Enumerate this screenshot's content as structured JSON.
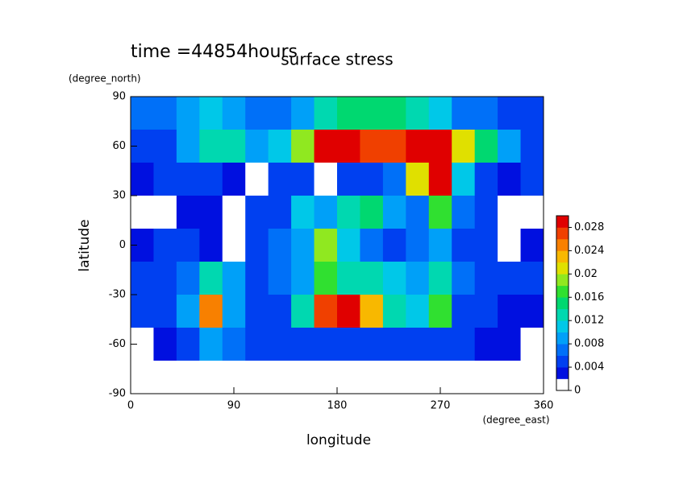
{
  "chart_data": {
    "type": "contour",
    "title": "surface stress",
    "subtitle": "time =44854hours",
    "x_label": "longitude",
    "x_units": "(degree_east)",
    "y_label": "latitude",
    "y_units": "(degree_north)",
    "x": [
      10,
      30,
      50,
      70,
      90,
      110,
      130,
      150,
      170,
      190,
      210,
      230,
      250,
      270,
      290,
      310,
      330,
      350
    ],
    "y": [
      80,
      60,
      40,
      20,
      0,
      -20,
      -40,
      -60,
      -80
    ],
    "z": [
      [
        0.006,
        0.006,
        0.008,
        0.01,
        0.008,
        0.006,
        0.006,
        0.008,
        0.012,
        0.014,
        0.014,
        0.014,
        0.012,
        0.01,
        0.006,
        0.006,
        0.005,
        0.004
      ],
      [
        0.004,
        0.005,
        0.008,
        0.012,
        0.012,
        0.008,
        0.01,
        0.018,
        0.03,
        0.03,
        0.026,
        0.026,
        0.03,
        0.03,
        0.02,
        0.014,
        0.008,
        0.004
      ],
      [
        0.002,
        0.004,
        0.004,
        0.004,
        0.002,
        0,
        0.004,
        0.004,
        0,
        0.004,
        0.004,
        0.006,
        0.02,
        0.03,
        0.01,
        0.004,
        0.002,
        0.004
      ],
      [
        0,
        0,
        0.002,
        0.002,
        0,
        0.004,
        0.004,
        0.01,
        0.008,
        0.012,
        0.014,
        0.008,
        0.006,
        0.016,
        0.006,
        0.004,
        0,
        0
      ],
      [
        0.002,
        0.004,
        0.004,
        0.002,
        0,
        0.004,
        0.006,
        0.008,
        0.018,
        0.01,
        0.006,
        0.004,
        0.006,
        0.008,
        0.004,
        0.004,
        0,
        0.002
      ],
      [
        0.004,
        0.004,
        0.006,
        0.012,
        0.008,
        0.004,
        0.006,
        0.008,
        0.016,
        0.012,
        0.012,
        0.01,
        0.008,
        0.012,
        0.006,
        0.004,
        0.004,
        0.004
      ],
      [
        0.004,
        0.004,
        0.008,
        0.024,
        0.008,
        0.004,
        0.004,
        0.012,
        0.026,
        0.028,
        0.022,
        0.012,
        0.01,
        0.016,
        0.004,
        0.004,
        0.002,
        0.002
      ],
      [
        0,
        0.002,
        0.004,
        0.008,
        0.006,
        0.004,
        0.004,
        0.004,
        0.004,
        0.004,
        0.004,
        0.004,
        0.004,
        0.004,
        0.004,
        0.002,
        0.002,
        0
      ],
      [
        0,
        0,
        0,
        0,
        0,
        0,
        0,
        0,
        0,
        0,
        0,
        0,
        0,
        0,
        0,
        0,
        0,
        0
      ]
    ],
    "xlim": [
      0,
      360
    ],
    "xticks": [
      0,
      90,
      180,
      270,
      360
    ],
    "ylim": [
      -90,
      90
    ],
    "yticks": [
      -90,
      -60,
      -30,
      0,
      30,
      60,
      90
    ],
    "zlim": [
      0,
      0.03
    ],
    "levels": [
      0,
      0.002,
      0.004,
      0.006,
      0.008,
      0.01,
      0.012,
      0.014,
      0.016,
      0.018,
      0.02,
      0.022,
      0.024,
      0.026,
      0.028,
      0.03
    ],
    "colors": [
      "#ffffff",
      "#0010e0",
      "#0040f0",
      "#0070f8",
      "#00a0f8",
      "#00c8e8",
      "#00d8b0",
      "#00d870",
      "#30e030",
      "#90e820",
      "#e0e000",
      "#f8b800",
      "#f88000",
      "#f04000",
      "#e00000"
    ],
    "colorbar_ticks": [
      0,
      0.004,
      0.008,
      0.012,
      0.016,
      0.02,
      0.024,
      0.028
    ]
  }
}
